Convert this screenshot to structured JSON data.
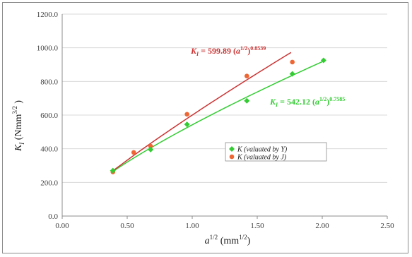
{
  "chart_data": {
    "type": "scatter",
    "xlabel": "a^(1/2) (mm^(1/2))",
    "ylabel": "K_I (Nmm^(3/2))",
    "xlim": [
      0.0,
      2.5
    ],
    "ylim": [
      0.0,
      1200.0
    ],
    "x_ticks": [
      "0.00",
      "0.50",
      "1.00",
      "1.50",
      "2.00",
      "2.50"
    ],
    "y_ticks": [
      "0.0",
      "200.0",
      "400.0",
      "600.0",
      "800.0",
      "1000.0",
      "1200.0"
    ],
    "grid": "horizontal",
    "legend_position": "center-right",
    "series": [
      {
        "name": "K (valuated by Y)",
        "color": "#33cc33",
        "marker": "diamond",
        "x": [
          0.39,
          0.68,
          0.96,
          1.42,
          1.77,
          2.01
        ],
        "y": [
          270,
          395,
          545,
          685,
          845,
          925
        ],
        "fit": {
          "coefficient": 542.12,
          "exponent": 0.7585,
          "x_range": [
            0.39,
            2.01
          ],
          "color": "#33cc33"
        }
      },
      {
        "name": "K (valuated by J)",
        "color": "#ee6633",
        "marker": "circle",
        "x": [
          0.39,
          0.55,
          0.68,
          0.96,
          1.42,
          1.77
        ],
        "y": [
          262,
          378,
          415,
          605,
          832,
          915
        ],
        "fit": {
          "coefficient": 599.89,
          "exponent": 0.8539,
          "x_range": [
            0.39,
            1.76
          ],
          "color": "#cc3333"
        }
      }
    ],
    "annotations": [
      {
        "label_main": "K",
        "label_sub": "I",
        "eq": " = 599.89 (",
        "var": "a",
        "sup_inner": "1/2",
        "close": ")",
        "sup_outer": "0.8539",
        "color": "#cc3333"
      },
      {
        "label_main": "K",
        "label_sub": "I",
        "eq": " = 542.12 (",
        "var": "a",
        "sup_inner": "1/2",
        "close": ")",
        "sup_outer": "0.7585",
        "color": "#33cc33"
      }
    ],
    "axis_titles": {
      "x": {
        "var": "a",
        "sup": "1/2",
        "unit_open": " (mm",
        "unit_sup": "1/2",
        "unit_close": ")"
      },
      "y": {
        "var": "K",
        "sub": "I",
        "unit_open": " (Nmm",
        "unit_sup": "3/2",
        "unit_close": " )"
      }
    }
  }
}
